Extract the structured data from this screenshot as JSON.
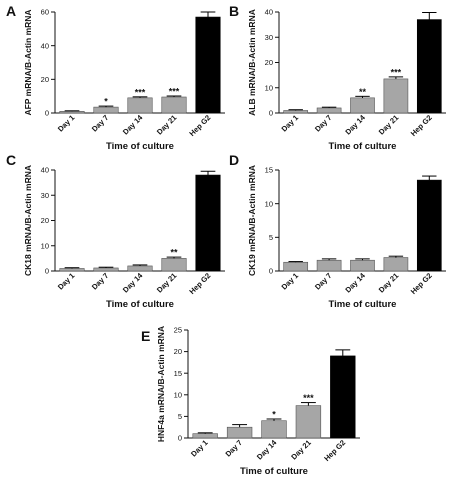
{
  "chart_data": [
    {
      "type": "bar",
      "panel": "A",
      "ylabel": "AFP mRNA/B-Actin mRNA",
      "xlabel": "Time of culture",
      "categories": [
        "Day 1",
        "Day 7",
        "Day 14",
        "Day 21",
        "Hep G2"
      ],
      "values": [
        1.0,
        3.5,
        9.0,
        9.5,
        57.0
      ],
      "errors": [
        0.3,
        0.6,
        0.6,
        0.6,
        3.0
      ],
      "significance": [
        "",
        "*",
        "***",
        "***",
        ""
      ],
      "bar_colors": [
        "#a6a6a6",
        "#a6a6a6",
        "#a6a6a6",
        "#a6a6a6",
        "#000000"
      ],
      "ylim": [
        0,
        60
      ],
      "yticks": [
        0,
        20,
        40,
        60
      ]
    },
    {
      "type": "bar",
      "panel": "B",
      "ylabel": "ALB mRNA/B-Actin mRNA",
      "xlabel": "Time of culture",
      "categories": [
        "Day 1",
        "Day 7",
        "Day 14",
        "Day 21",
        "Hep G2"
      ],
      "values": [
        1.0,
        2.0,
        6.0,
        13.5,
        37.0
      ],
      "errors": [
        0.3,
        0.3,
        0.6,
        0.8,
        2.8
      ],
      "significance": [
        "",
        "",
        "**",
        "***",
        ""
      ],
      "bar_colors": [
        "#a6a6a6",
        "#a6a6a6",
        "#a6a6a6",
        "#a6a6a6",
        "#000000"
      ],
      "ylim": [
        0,
        40
      ],
      "yticks": [
        0,
        10,
        20,
        30,
        40
      ]
    },
    {
      "type": "bar",
      "panel": "C",
      "ylabel": "CK18 mRNA/B-Actin mRNA",
      "xlabel": "Time of culture",
      "categories": [
        "Day 1",
        "Day 7",
        "Day 14",
        "Day 21",
        "Hep G2"
      ],
      "values": [
        1.0,
        1.2,
        2.0,
        5.0,
        38.0
      ],
      "errors": [
        0.3,
        0.3,
        0.4,
        0.5,
        1.5
      ],
      "significance": [
        "",
        "",
        "",
        "**",
        ""
      ],
      "bar_colors": [
        "#a6a6a6",
        "#a6a6a6",
        "#a6a6a6",
        "#a6a6a6",
        "#000000"
      ],
      "ylim": [
        0,
        40
      ],
      "yticks": [
        0,
        10,
        20,
        30,
        40
      ]
    },
    {
      "type": "bar",
      "panel": "D",
      "ylabel": "CK19 mRNA/B-Actin mRNA",
      "xlabel": "Time of culture",
      "categories": [
        "Day 1",
        "Day 7",
        "Day 14",
        "Day 21",
        "Hep G2"
      ],
      "values": [
        1.3,
        1.6,
        1.6,
        2.0,
        13.5
      ],
      "errors": [
        0.1,
        0.2,
        0.2,
        0.2,
        0.6
      ],
      "significance": [
        "",
        "",
        "",
        "",
        ""
      ],
      "bar_colors": [
        "#a6a6a6",
        "#a6a6a6",
        "#a6a6a6",
        "#a6a6a6",
        "#000000"
      ],
      "ylim": [
        0,
        15
      ],
      "yticks": [
        0,
        5,
        10,
        15
      ]
    },
    {
      "type": "bar",
      "panel": "E",
      "ylabel": "HNF4a mRNA/B-Actin mRNA",
      "xlabel": "Time of culture",
      "categories": [
        "Day 1",
        "Day 7",
        "Day 14",
        "Day 21",
        "Hep G2"
      ],
      "values": [
        1.0,
        2.5,
        4.0,
        7.5,
        19.0
      ],
      "errors": [
        0.2,
        0.6,
        0.4,
        0.7,
        1.4
      ],
      "significance": [
        "",
        "",
        "*",
        "***",
        ""
      ],
      "bar_colors": [
        "#a6a6a6",
        "#a6a6a6",
        "#a6a6a6",
        "#a6a6a6",
        "#000000"
      ],
      "ylim": [
        0,
        25
      ],
      "yticks": [
        0,
        5,
        10,
        15,
        20,
        25
      ]
    }
  ]
}
